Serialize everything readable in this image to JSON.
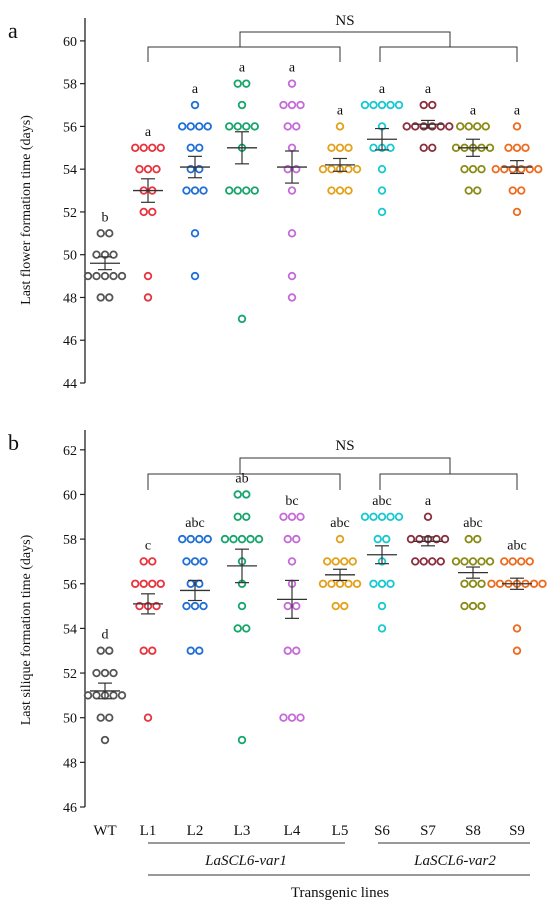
{
  "chart_data": [
    {
      "panel_label": "a",
      "type": "scatter",
      "ylabel": "Last flower formation time (days)",
      "ylim": [
        44,
        61
      ],
      "yticks": [
        44,
        46,
        48,
        50,
        52,
        54,
        56,
        58,
        60
      ],
      "categories": [
        "WT",
        "L1",
        "L2",
        "L3",
        "L4",
        "L5",
        "S6",
        "S7",
        "S8",
        "S9"
      ],
      "significance_letters": [
        "b",
        "a",
        "a",
        "a",
        "a",
        "a",
        "a",
        "a",
        "a",
        "a"
      ],
      "brackets": {
        "overall": "NS"
      },
      "colors": [
        "#555555",
        "#e8323c",
        "#1f6fd6",
        "#17a56c",
        "#c56ad8",
        "#e3a11a",
        "#18c8d0",
        "#8b2d3c",
        "#8a8a16",
        "#ee6a1e"
      ],
      "mean": [
        49.6,
        53.0,
        54.1,
        55.0,
        54.1,
        54.2,
        55.4,
        56.1,
        55.0,
        54.1
      ],
      "sem": [
        0.3,
        0.55,
        0.5,
        0.75,
        0.75,
        0.3,
        0.5,
        0.18,
        0.4,
        0.3
      ],
      "points": [
        [
          51,
          51,
          50,
          50,
          50,
          49,
          49,
          49,
          49,
          49,
          48,
          48
        ],
        [
          55,
          55,
          55,
          55,
          54,
          54,
          54,
          53,
          53,
          52,
          52,
          49,
          48
        ],
        [
          57,
          56,
          56,
          56,
          56,
          55,
          55,
          54,
          54,
          53,
          53,
          53,
          51,
          49
        ],
        [
          58,
          58,
          57,
          56,
          56,
          56,
          56,
          55,
          53,
          53,
          53,
          53,
          47
        ],
        [
          58,
          57,
          57,
          57,
          56,
          56,
          55,
          54,
          54,
          53,
          51,
          49,
          48
        ],
        [
          56,
          55,
          55,
          55,
          54,
          54,
          54,
          54,
          54,
          53,
          53,
          53
        ],
        [
          57,
          57,
          57,
          57,
          57,
          56,
          55,
          55,
          55,
          54,
          53,
          52
        ],
        [
          57,
          57,
          56,
          56,
          56,
          56,
          56,
          56,
          55,
          55
        ],
        [
          56,
          56,
          56,
          56,
          55,
          55,
          55,
          55,
          55,
          54,
          54,
          54,
          53,
          53
        ],
        [
          56,
          55,
          55,
          55,
          54,
          54,
          54,
          54,
          54,
          54,
          53,
          53,
          52
        ]
      ]
    },
    {
      "panel_label": "b",
      "type": "scatter",
      "ylabel": "Last silique formation time (days)",
      "xlabel": "Transgenic lines",
      "group_labels": [
        "LaSCL6-var1",
        "LaSCL6-var2"
      ],
      "ylim": [
        46,
        63
      ],
      "yticks": [
        46,
        48,
        50,
        52,
        54,
        56,
        58,
        60,
        62
      ],
      "categories": [
        "WT",
        "L1",
        "L2",
        "L3",
        "L4",
        "L5",
        "S6",
        "S7",
        "S8",
        "S9"
      ],
      "significance_letters": [
        "d",
        "c",
        "abc",
        "ab",
        "bc",
        "abc",
        "abc",
        "a",
        "abc",
        "abc"
      ],
      "brackets": {
        "overall": "NS"
      },
      "colors": [
        "#555555",
        "#e8323c",
        "#1f6fd6",
        "#17a56c",
        "#c56ad8",
        "#e3a11a",
        "#18c8d0",
        "#8b2d3c",
        "#8a8a16",
        "#ee6a1e"
      ],
      "mean": [
        51.2,
        55.1,
        55.7,
        56.8,
        55.3,
        56.4,
        57.3,
        57.9,
        56.5,
        56.0
      ],
      "sem": [
        0.35,
        0.45,
        0.45,
        0.75,
        0.85,
        0.25,
        0.4,
        0.2,
        0.25,
        0.25
      ],
      "points": [
        [
          53,
          53,
          52,
          52,
          52,
          51,
          51,
          51,
          51,
          51,
          50,
          50,
          49
        ],
        [
          57,
          57,
          56,
          56,
          56,
          56,
          55,
          55,
          55,
          53,
          53,
          50
        ],
        [
          58,
          58,
          58,
          58,
          57,
          57,
          57,
          56,
          56,
          55,
          55,
          55,
          53,
          53
        ],
        [
          60,
          60,
          59,
          59,
          58,
          58,
          58,
          58,
          58,
          57,
          56,
          55,
          54,
          54,
          49
        ],
        [
          59,
          59,
          59,
          58,
          58,
          57,
          56,
          55,
          55,
          53,
          53,
          50,
          50,
          50
        ],
        [
          58,
          57,
          57,
          57,
          57,
          56,
          56,
          56,
          56,
          56,
          55,
          55
        ],
        [
          59,
          59,
          59,
          59,
          59,
          58,
          58,
          57,
          56,
          56,
          56,
          55,
          54
        ],
        [
          59,
          58,
          58,
          58,
          58,
          58,
          57,
          57,
          57,
          57
        ],
        [
          58,
          58,
          57,
          57,
          57,
          57,
          57,
          56,
          56,
          56,
          55,
          55,
          55
        ],
        [
          57,
          57,
          57,
          57,
          56,
          56,
          56,
          56,
          56,
          56,
          56,
          54,
          53
        ]
      ]
    }
  ]
}
